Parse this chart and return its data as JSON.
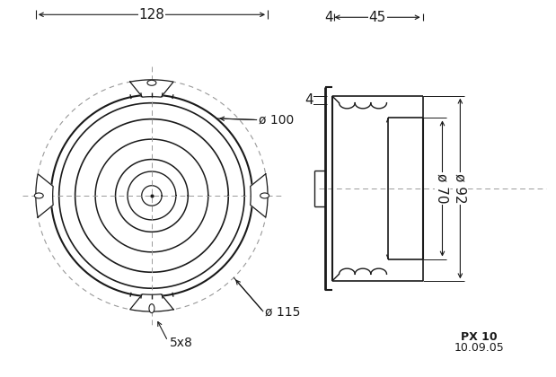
{
  "bg_color": "#ffffff",
  "line_color": "#1a1a1a",
  "dim_color": "#1a1a1a",
  "dash_color": "#999999",
  "label_128": "128",
  "label_4_top": "4",
  "label_45": "45",
  "label_4_side": "4",
  "label_100": "ø 100",
  "label_115": "ø 115",
  "label_5x8": "5x8",
  "label_70": "ø 70",
  "label_92": "ø 92",
  "label_model": "PX 10",
  "label_date": "10.09.05",
  "font_size_dim": 11,
  "font_size_label": 10,
  "font_size_small": 9
}
